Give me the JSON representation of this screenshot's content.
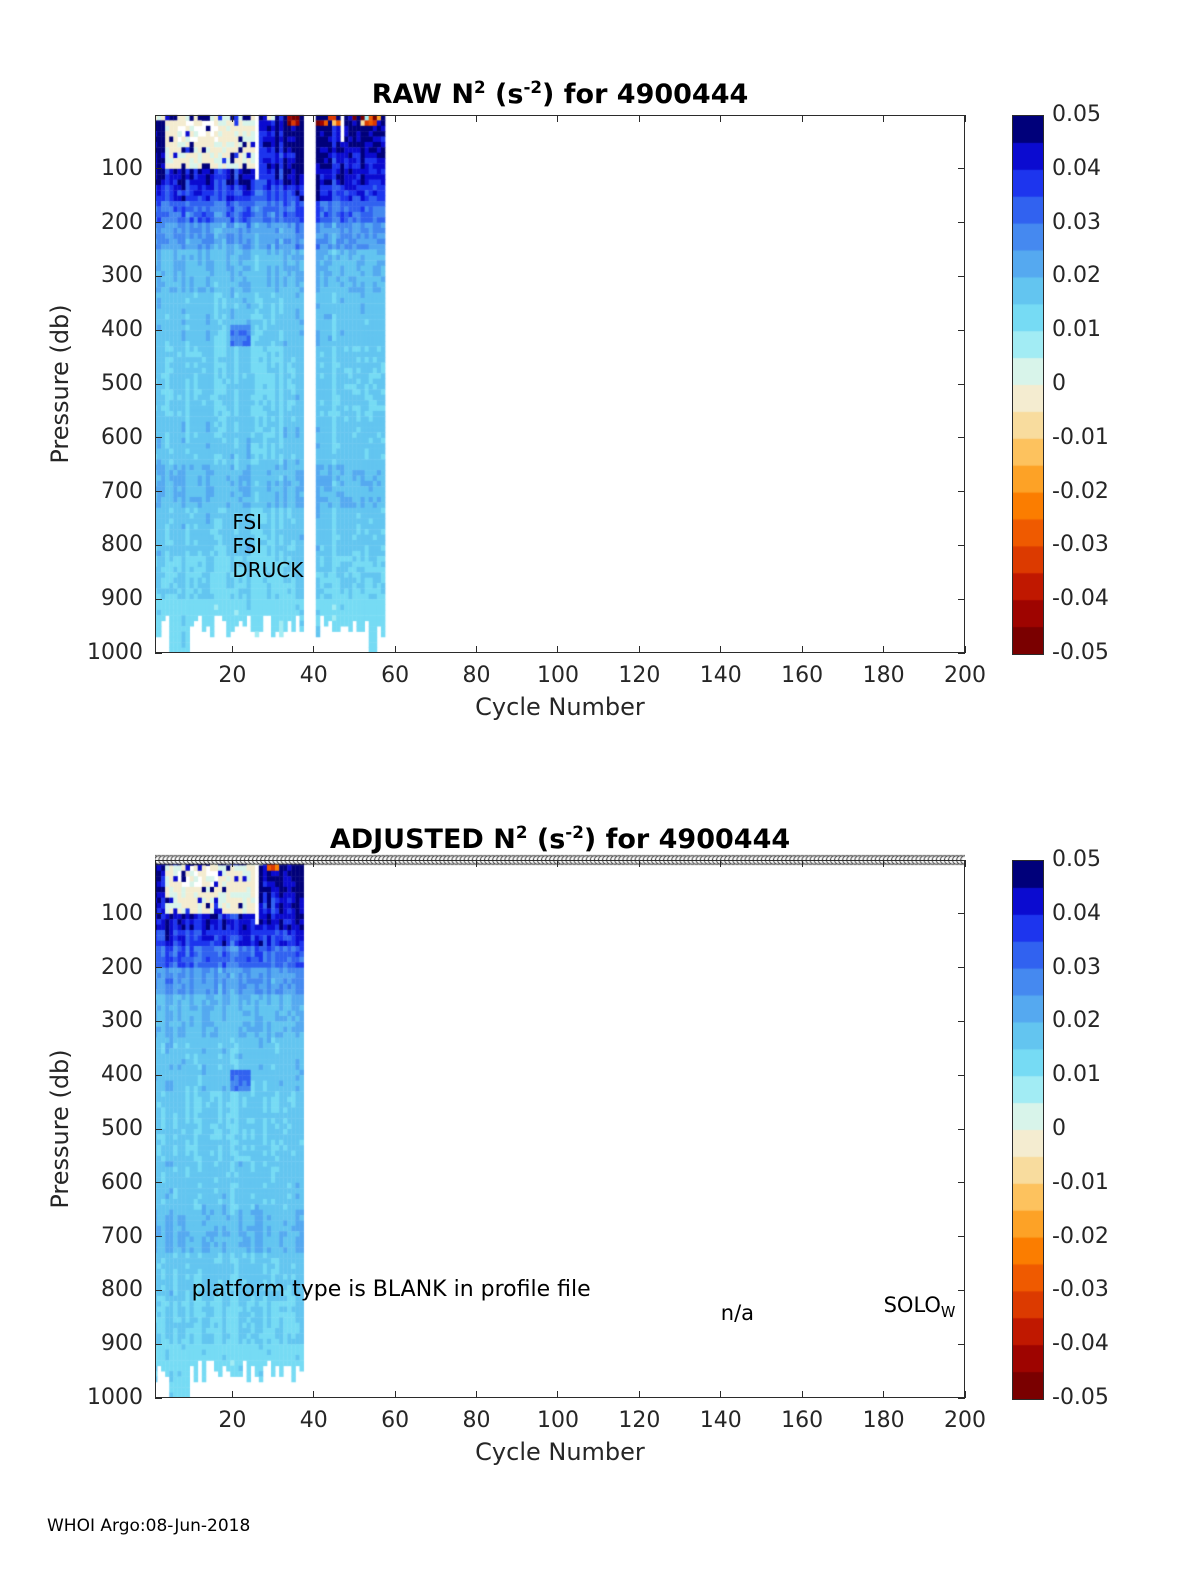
{
  "figure": {
    "float_id": "4900444"
  },
  "footer": "WHOI Argo:08-Jun-2018",
  "palette": {
    "vmin": -0.05,
    "vmax": 0.05,
    "axis_color": "#2b2b2b",
    "label_color": "#262626",
    "background": "#ffffff",
    "colormap_low_to_high": [
      "#7a0000",
      "#9e0400",
      "#c01800",
      "#dc3a00",
      "#ef5a00",
      "#fb7d00",
      "#fda226",
      "#fdc25e",
      "#f8dc9e",
      "#f4ecd0",
      "#d8f4ea",
      "#a2ecf4",
      "#76dbf4",
      "#63c5f0",
      "#55a9f0",
      "#4589f0",
      "#3162f0",
      "#1d35ee",
      "#0b0bd0",
      "#00007a"
    ]
  },
  "chart_data": [
    {
      "type": "heatmap",
      "title": "RAW N^2 (s^-2) for 4900444",
      "title_parts": [
        {
          "text": "RAW N"
        },
        {
          "text": "2",
          "script": "sup"
        },
        {
          "text": " (s"
        },
        {
          "text": "-2",
          "script": "sup"
        },
        {
          "text": ") for 4900444"
        }
      ],
      "xlabel": "Cycle Number",
      "ylabel": "Pressure (db)",
      "xlim": [
        1,
        200
      ],
      "ylim": [
        0,
        1000
      ],
      "y_inverted": true,
      "xticks": [
        20,
        40,
        60,
        80,
        100,
        120,
        140,
        160,
        180,
        200
      ],
      "yticks": [
        100,
        200,
        300,
        400,
        500,
        600,
        700,
        800,
        900,
        1000
      ],
      "colorbar_ticks": [
        "0.05",
        "0.04",
        "0.03",
        "0.02",
        "0.01",
        "0",
        "-0.01",
        "-0.02",
        "-0.03",
        "-0.04",
        "-0.05"
      ],
      "annotations": [
        {
          "text": "FSI",
          "x": 20,
          "y": 757,
          "size": 20
        },
        {
          "text": "FSI",
          "x": 20,
          "y": 801,
          "size": 20
        },
        {
          "text": "DRUCK",
          "x": 20,
          "y": 846,
          "size": 20
        }
      ],
      "heatmap": {
        "cycles": [
          1,
          57
        ],
        "cell_db": 10,
        "default_bottom_db": 950,
        "deep_columns": [
          5,
          6,
          7,
          8,
          9,
          54,
          55
        ],
        "deep_bottom_db": 1000,
        "bands": [
          [
            0,
            25,
            0.047
          ],
          [
            25,
            70,
            0.045
          ],
          [
            70,
            125,
            0.042
          ],
          [
            125,
            160,
            0.037
          ],
          [
            160,
            200,
            0.031
          ],
          [
            200,
            245,
            0.024
          ],
          [
            245,
            330,
            0.019
          ],
          [
            330,
            430,
            0.017
          ],
          [
            430,
            560,
            0.0155
          ],
          [
            560,
            645,
            0.0165
          ],
          [
            645,
            725,
            0.019
          ],
          [
            725,
            815,
            0.016
          ],
          [
            815,
            900,
            0.0145
          ],
          [
            900,
            1000,
            0.0125
          ]
        ],
        "patches": [
          [
            1,
            30,
            0,
            8,
            -0.001,
            0.004,
            0.35
          ],
          [
            4,
            26,
            5,
            95,
            -0.001,
            0.0035,
            0.88
          ],
          [
            7,
            16,
            8,
            48,
            null,
            0,
            0.4
          ],
          [
            20,
            24,
            385,
            425,
            0.029,
            0.004,
            1
          ],
          [
            41,
            57,
            0,
            16,
            -0.022,
            0.034,
            0.6
          ],
          [
            34,
            36,
            0,
            12,
            -0.042,
            0.012,
            0.9
          ]
        ],
        "gaps": [
          [
            37.5,
            40.5,
            0,
            1000
          ],
          [
            25.5,
            26.5,
            0,
            115
          ],
          [
            46.5,
            47.5,
            0,
            45
          ]
        ],
        "column_noise": 0.16,
        "cell_noise": 0.12,
        "seed": 11
      }
    },
    {
      "type": "heatmap",
      "title": "ADJUSTED N^2 (s^-2) for 4900444",
      "title_parts": [
        {
          "text": "ADJUSTED N"
        },
        {
          "text": "2",
          "script": "sup"
        },
        {
          "text": " (s"
        },
        {
          "text": "-2",
          "script": "sup"
        },
        {
          "text": ") for 4900444"
        }
      ],
      "xlabel": "Cycle Number",
      "ylabel": "Pressure (db)",
      "xlim": [
        1,
        200
      ],
      "ylim": [
        0,
        1000
      ],
      "y_inverted": true,
      "xticks": [
        20,
        40,
        60,
        80,
        100,
        120,
        140,
        160,
        180,
        200
      ],
      "yticks": [
        100,
        200,
        300,
        400,
        500,
        600,
        700,
        800,
        900,
        1000
      ],
      "colorbar_ticks": [
        "0.05",
        "0.04",
        "0.03",
        "0.02",
        "0.01",
        "0",
        "-0.01",
        "-0.02",
        "-0.03",
        "-0.04",
        "-0.05"
      ],
      "annotations": [
        {
          "text": "platform type is BLANK in profile file",
          "x": 10,
          "y": 797,
          "size": 22
        },
        {
          "text": "n/a",
          "x": 140,
          "y": 842,
          "size": 21
        },
        {
          "text": "SOLO",
          "sub": "W",
          "x": 180,
          "y": 828,
          "size": 21
        }
      ],
      "top_markers": {
        "from": 1,
        "to": 200,
        "step": 1,
        "pressure": 0,
        "radius": 4.3
      },
      "heatmap": {
        "cycles": [
          1,
          37
        ],
        "cell_db": 10,
        "default_bottom_db": 950,
        "deep_columns": [
          5,
          6,
          7,
          8,
          9
        ],
        "deep_bottom_db": 1000,
        "bands": [
          [
            0,
            25,
            0.047
          ],
          [
            25,
            70,
            0.045
          ],
          [
            70,
            125,
            0.042
          ],
          [
            125,
            160,
            0.037
          ],
          [
            160,
            200,
            0.031
          ],
          [
            200,
            245,
            0.024
          ],
          [
            245,
            330,
            0.019
          ],
          [
            330,
            430,
            0.017
          ],
          [
            430,
            560,
            0.0155
          ],
          [
            560,
            645,
            0.0165
          ],
          [
            645,
            725,
            0.019
          ],
          [
            725,
            815,
            0.016
          ],
          [
            815,
            900,
            0.0145
          ],
          [
            900,
            1000,
            0.0125
          ]
        ],
        "patches": [
          [
            1,
            30,
            0,
            8,
            -0.001,
            0.004,
            0.35
          ],
          [
            4,
            26,
            5,
            95,
            -0.001,
            0.0035,
            0.88
          ],
          [
            7,
            16,
            8,
            48,
            null,
            0,
            0.4
          ],
          [
            20,
            24,
            385,
            425,
            0.029,
            0.004,
            1
          ],
          [
            29,
            31,
            0,
            12,
            -0.03,
            0.015,
            0.9
          ]
        ],
        "gaps": [
          [
            25.5,
            26.5,
            0,
            115
          ]
        ],
        "column_noise": 0.16,
        "cell_noise": 0.12,
        "seed": 23
      }
    }
  ]
}
